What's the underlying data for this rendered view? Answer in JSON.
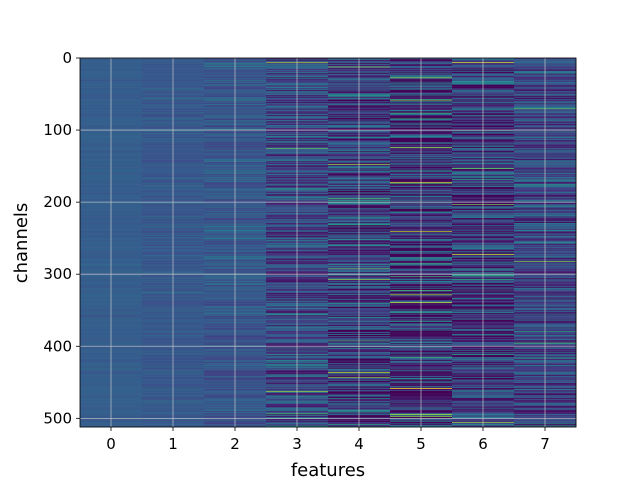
{
  "chart_data": {
    "type": "heatmap",
    "title": "",
    "xlabel": "features",
    "ylabel": "channels",
    "x_categories": [
      "0",
      "1",
      "2",
      "3",
      "4",
      "5",
      "6",
      "7"
    ],
    "y_range": [
      0,
      512
    ],
    "y_ticks": [
      "0",
      "100",
      "200",
      "300",
      "400",
      "500"
    ],
    "y_inverted": true,
    "rows": 512,
    "colormap": "viridis",
    "grid": true,
    "column_contrast": [
      0.05,
      0.09,
      0.16,
      0.38,
      0.5,
      0.62,
      0.55,
      0.36
    ],
    "column_base": [
      0.3,
      0.28,
      0.27,
      0.22,
      0.19,
      0.14,
      0.17,
      0.21
    ],
    "highlight_rows": [
      {
        "col": 3,
        "row": 6,
        "v": 0.85
      },
      {
        "col": 3,
        "row": 462,
        "v": 0.85
      },
      {
        "col": 4,
        "row": 12,
        "v": 0.8
      },
      {
        "col": 4,
        "row": 147,
        "v": 0.85
      },
      {
        "col": 4,
        "row": 436,
        "v": 0.9
      },
      {
        "col": 5,
        "row": 172,
        "v": 0.95
      },
      {
        "col": 5,
        "row": 240,
        "v": 0.92
      },
      {
        "col": 5,
        "row": 458,
        "v": 1.0
      },
      {
        "col": 6,
        "row": 6,
        "v": 0.95
      },
      {
        "col": 6,
        "row": 272,
        "v": 0.92
      },
      {
        "col": 6,
        "row": 505,
        "v": 0.85
      },
      {
        "col": 7,
        "row": 70,
        "v": 0.75
      },
      {
        "col": 7,
        "row": 282,
        "v": 0.8
      }
    ]
  }
}
